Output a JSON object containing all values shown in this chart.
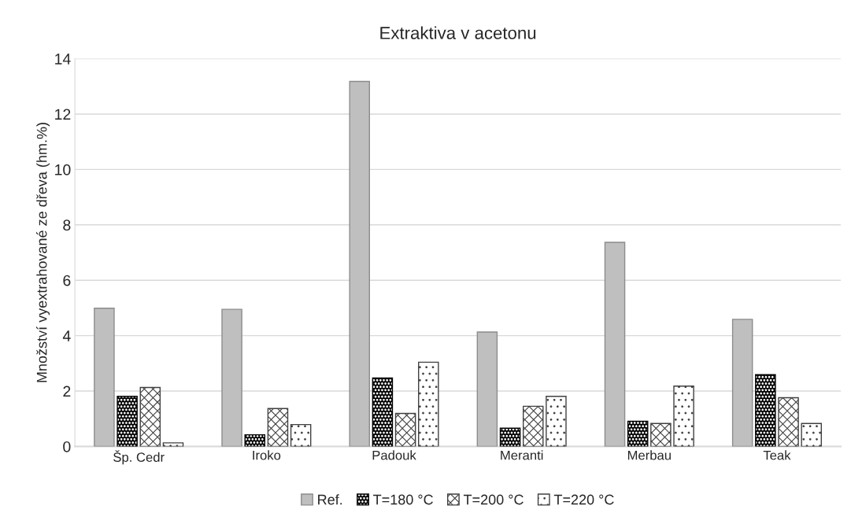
{
  "chart_data": {
    "type": "bar",
    "title": "Extraktiva v acetonu",
    "ylabel": "Množství vyextrahované ze dřeva (hm.%)",
    "categories": [
      "Šp. Cedr",
      "Iroko",
      "Padouk",
      "Meranti",
      "Merbau",
      "Teak"
    ],
    "series": [
      {
        "name": "Ref.",
        "color": "#bfbfbf",
        "values": [
          4.99,
          4.95,
          13.18,
          4.13,
          7.37,
          4.59
        ]
      },
      {
        "name": "T=180 °C",
        "color": "#000000",
        "values": [
          1.81,
          0.42,
          2.47,
          0.66,
          0.91,
          2.59
        ]
      },
      {
        "name": "T=200 °C",
        "color": "#404040",
        "values": [
          2.13,
          1.37,
          1.19,
          1.45,
          0.83,
          1.76
        ]
      },
      {
        "name": "T=220 °C",
        "color": "#404040",
        "values": [
          0.13,
          0.79,
          3.04,
          1.81,
          2.18,
          0.83
        ]
      }
    ],
    "ylim": [
      0,
      14
    ],
    "yticks": [
      0,
      2,
      4,
      6,
      8,
      10,
      12,
      14
    ],
    "grid": "y",
    "legend": "bottom"
  }
}
